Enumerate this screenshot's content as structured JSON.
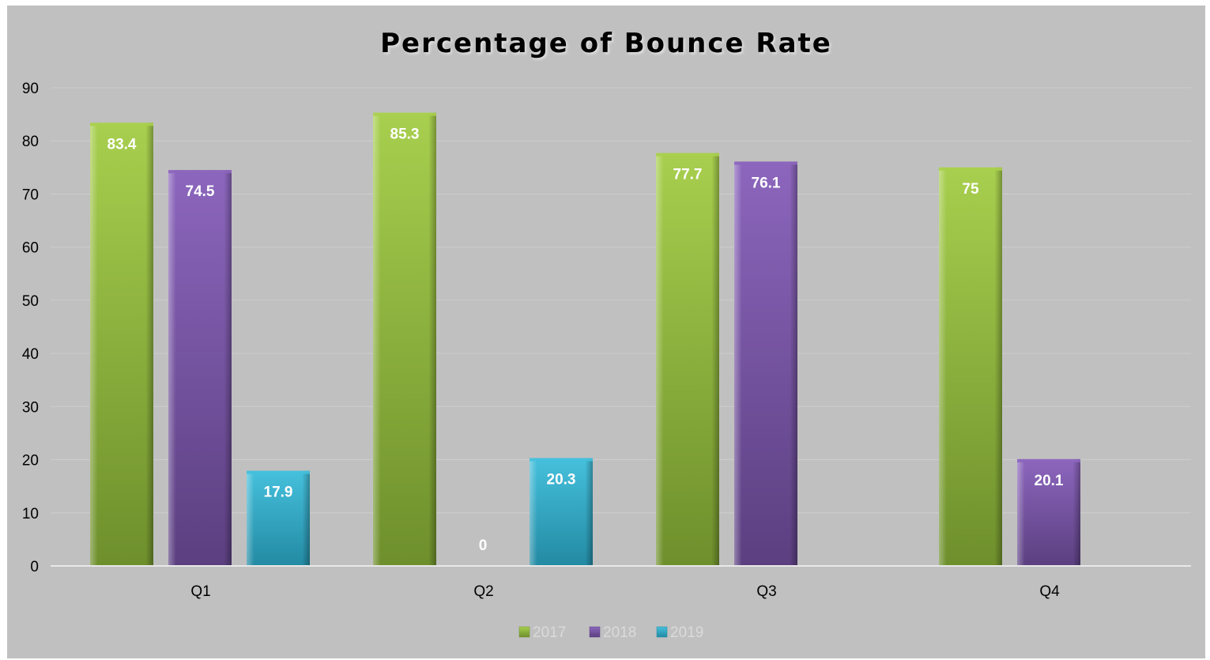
{
  "chart_data": {
    "type": "bar",
    "title": "Percentage of Bounce Rate",
    "categories": [
      "Q1",
      "Q2",
      "Q3",
      "Q4"
    ],
    "series": [
      {
        "name": "2017",
        "values": [
          83.4,
          85.3,
          77.7,
          75
        ],
        "labels": [
          "83.4",
          "85.3",
          "77.7",
          "75"
        ],
        "color": "#8db43e",
        "light": "#a8cf4e",
        "dark": "#6e8f2c"
      },
      {
        "name": "2018",
        "values": [
          74.5,
          0,
          76.1,
          20.1
        ],
        "labels": [
          "74.5",
          "0",
          "76.1",
          "20.1"
        ],
        "color": "#7350a0",
        "light": "#8c66bd",
        "dark": "#5b3f80"
      },
      {
        "name": "2019",
        "values": [
          17.9,
          20.3,
          null,
          null
        ],
        "labels": [
          "17.9",
          "20.3",
          null,
          null
        ],
        "color": "#2fa7c4",
        "light": "#45c0dc",
        "dark": "#238aa3"
      }
    ],
    "ylim": [
      0,
      90
    ],
    "yticks": [
      "0",
      "10",
      "20",
      "30",
      "40",
      "50",
      "60",
      "70",
      "80",
      "90"
    ],
    "xlabel": "",
    "ylabel": "",
    "grid": true,
    "legend": "bottom",
    "background": "#c0c0c0"
  }
}
